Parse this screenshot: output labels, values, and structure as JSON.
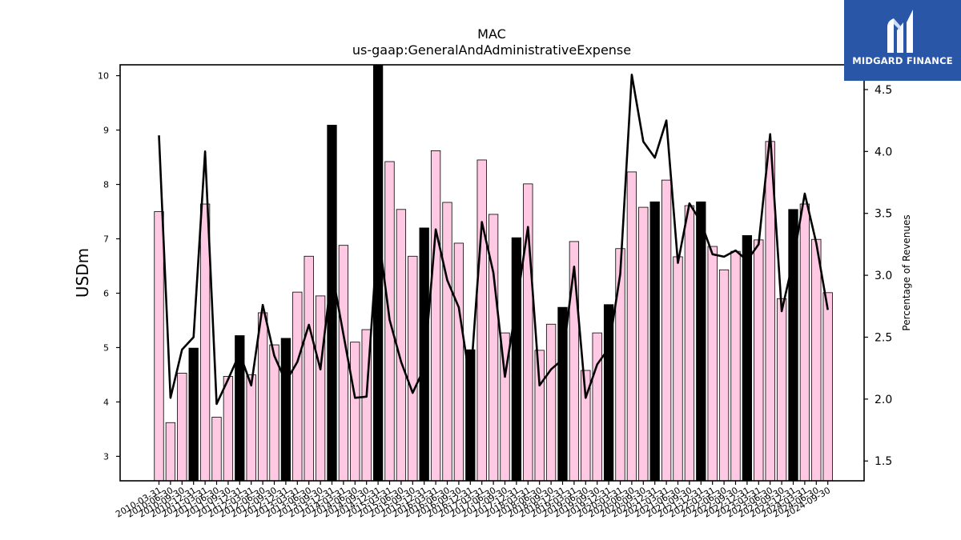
{
  "brand": {
    "name": "MIDGARD FINANCE",
    "bg_color": "#2a56a8",
    "icon": "midgard-m-logo-icon"
  },
  "chart_data": {
    "type": "bar",
    "title": "MAC",
    "subtitle": "us-gaap:GeneralAndAdministrativeExpense",
    "ylabel": "USDm",
    "y2label": "Percentage of Revenues",
    "ylim": [
      2.55,
      10.2
    ],
    "y2lim": [
      1.34,
      4.7
    ],
    "yticks": [
      3,
      4,
      5,
      6,
      7,
      8,
      9,
      10
    ],
    "y2ticks": [
      "1.5",
      "2.0",
      "2.5",
      "3.0",
      "3.5",
      "4.0",
      "4.5"
    ],
    "colors": {
      "quarter_bar": "#ffc8e3",
      "year_end_bar": "#000000",
      "line": "#000000"
    },
    "categories": [
      "2010-03-31",
      "2010-06-30",
      "2010-09-30",
      "2010-12-31",
      "2011-03-31",
      "2011-06-30",
      "2011-09-30",
      "2011-12-31",
      "2012-03-31",
      "2012-06-30",
      "2012-09-30",
      "2012-12-31",
      "2013-03-31",
      "2013-06-30",
      "2013-09-30",
      "2013-12-31",
      "2014-03-31",
      "2014-06-30",
      "2014-09-30",
      "2014-12-31",
      "2015-03-31",
      "2015-06-30",
      "2015-09-30",
      "2015-12-31",
      "2016-03-31",
      "2016-06-30",
      "2016-09-30",
      "2016-12-31",
      "2017-03-31",
      "2017-06-30",
      "2017-09-30",
      "2017-12-31",
      "2018-03-31",
      "2018-06-30",
      "2018-09-30",
      "2018-12-31",
      "2019-03-31",
      "2019-06-30",
      "2019-09-30",
      "2019-12-31",
      "2020-03-31",
      "2020-06-30",
      "2020-09-30",
      "2020-12-31",
      "2021-03-31",
      "2021-06-30",
      "2021-09-30",
      "2021-12-31",
      "2022-03-31",
      "2022-06-30",
      "2022-09-30",
      "2022-12-31",
      "2023-03-31",
      "2023-06-30",
      "2023-09-30",
      "2023-12-31",
      "2024-03-31",
      "2024-06-30",
      "2024-09-30"
    ],
    "series": [
      {
        "values": [
          7.5,
          3.62,
          4.53,
          4.99,
          7.64,
          3.72,
          4.47,
          5.22,
          4.5,
          5.64,
          5.05,
          5.17,
          6.02,
          6.68,
          5.95,
          9.09,
          6.88,
          5.1,
          5.33,
          10.24,
          8.42,
          7.54,
          6.68,
          7.2,
          8.62,
          7.67,
          6.92,
          4.96,
          8.45,
          7.45,
          5.27,
          7.02,
          8.01,
          4.95,
          5.43,
          5.74,
          6.95,
          4.58,
          5.27,
          5.79,
          6.82,
          8.23,
          7.58,
          7.68,
          8.08,
          6.67,
          7.61,
          7.68,
          6.86,
          6.43,
          6.77,
          7.06,
          6.98,
          8.79,
          5.9,
          7.54,
          7.64,
          6.99,
          6.01
        ],
        "year_end": [
          false,
          false,
          false,
          true,
          false,
          false,
          false,
          true,
          false,
          false,
          false,
          true,
          false,
          false,
          false,
          true,
          false,
          false,
          false,
          true,
          false,
          false,
          false,
          true,
          false,
          false,
          false,
          true,
          false,
          false,
          false,
          true,
          false,
          false,
          false,
          true,
          false,
          false,
          false,
          true,
          false,
          false,
          false,
          true,
          false,
          false,
          false,
          true,
          false,
          false,
          false,
          true,
          false,
          false,
          false,
          true,
          false,
          false,
          false
        ]
      },
      {
        "axis": "right",
        "type": "line",
        "values": [
          4.13,
          2.01,
          2.4,
          2.5,
          4.0,
          1.96,
          2.16,
          2.37,
          2.11,
          2.76,
          2.35,
          2.14,
          2.3,
          2.6,
          2.24,
          3.03,
          2.52,
          2.01,
          2.02,
          3.36,
          2.64,
          2.3,
          2.05,
          2.25,
          3.37,
          2.96,
          2.74,
          2.13,
          3.43,
          3.02,
          2.18,
          2.76,
          3.39,
          2.11,
          2.24,
          2.32,
          3.07,
          2.01,
          2.28,
          2.41,
          3.01,
          4.62,
          4.08,
          3.95,
          4.25,
          3.1,
          3.58,
          3.43,
          3.17,
          3.15,
          3.2,
          3.12,
          3.25,
          4.14,
          2.71,
          3.12,
          3.66,
          3.26,
          2.72
        ]
      }
    ]
  }
}
